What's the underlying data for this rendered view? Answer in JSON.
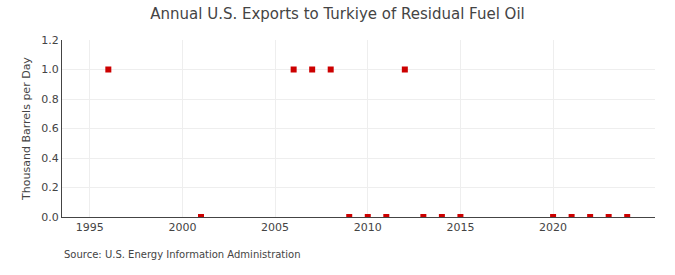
{
  "chart_data": {
    "type": "scatter",
    "title": "Annual U.S. Exports to Turkiye of Residual Fuel Oil",
    "ylabel": "Thousand Barrels per Day",
    "source": "Source: U.S. Energy Information Administration",
    "x": [
      1996,
      2001,
      2006,
      2007,
      2008,
      2009,
      2010,
      2011,
      2012,
      2013,
      2014,
      2015,
      2020,
      2021,
      2022,
      2023,
      2024
    ],
    "values": [
      1.0,
      0.0,
      1.0,
      1.0,
      1.0,
      0.0,
      0.0,
      0.0,
      1.0,
      0.0,
      0.0,
      0.0,
      0.0,
      0.0,
      0.0,
      0.0,
      0.0
    ],
    "color": "#cc0000",
    "marker": "square",
    "xlim": [
      1993.5,
      2025.5
    ],
    "xticks": [
      1995,
      2000,
      2005,
      2010,
      2015,
      2020
    ],
    "ylim": [
      0.0,
      1.2
    ],
    "yticks": [
      {
        "value": 0.0,
        "label": "0.0"
      },
      0.2,
      0.4,
      0.6,
      0.8,
      {
        "value": 1.0,
        "label": "1.0"
      },
      1.2
    ],
    "grid": true
  }
}
